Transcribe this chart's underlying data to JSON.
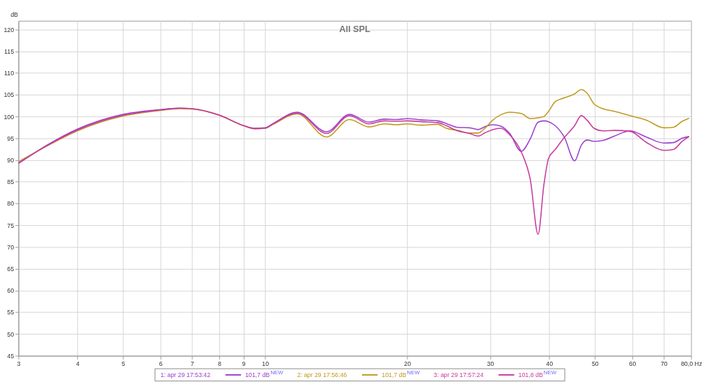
{
  "chart_data": {
    "type": "line",
    "title": "All SPL",
    "ylabel": "dB",
    "x": [
      3.0,
      3.46,
      4.0,
      5.0,
      6.0,
      6.6,
      7.0,
      8.0,
      9.0,
      9.5,
      10.0,
      10.4,
      11.7,
      13.5,
      15.1,
      16.6,
      17.9,
      19.0,
      20.0,
      21.5,
      23.2,
      24.2,
      25.6,
      27.1,
      28.3,
      29.3,
      30.4,
      31.6,
      33.0,
      34.9,
      36.5,
      37.9,
      39.0,
      39.9,
      41.2,
      43.1,
      45.3,
      46.8,
      48.1,
      49.8,
      52.0,
      55.0,
      59.4,
      64.2,
      70.1,
      73.3,
      76.6,
      79.2
    ],
    "series": [
      {
        "name": "1: apr 29 17:53:42",
        "color": "#9b40d0",
        "values": [
          89.2,
          93.5,
          97.1,
          100.5,
          101.6,
          101.9,
          101.8,
          100.3,
          97.9,
          97.3,
          97.4,
          98.4,
          101.0,
          96.5,
          100.5,
          98.7,
          99.4,
          99.3,
          99.5,
          99.2,
          99.0,
          98.4,
          97.5,
          97.4,
          97.0,
          97.7,
          98.1,
          97.8,
          96.1,
          92.0,
          94.9,
          98.7,
          99.0,
          98.8,
          97.9,
          95.2,
          89.8,
          93.4,
          94.6,
          94.3,
          94.5,
          95.5,
          96.7,
          95.3,
          93.9,
          94.0,
          95.0,
          95.4
        ]
      },
      {
        "name": "2: apr 29 17:56:46",
        "color": "#c09a20",
        "values": [
          89.6,
          93.3,
          96.7,
          100.1,
          101.4,
          101.8,
          101.7,
          100.3,
          97.9,
          97.2,
          97.3,
          98.2,
          100.6,
          95.3,
          99.3,
          97.6,
          98.3,
          98.1,
          98.3,
          98.0,
          98.2,
          97.3,
          96.8,
          96.2,
          96.2,
          97.4,
          99.2,
          100.4,
          101.0,
          100.7,
          99.5,
          99.7,
          100.0,
          101.2,
          103.4,
          104.3,
          105.2,
          106.2,
          105.4,
          102.9,
          101.8,
          101.2,
          100.2,
          99.2,
          97.4,
          97.5,
          98.9,
          99.6
        ]
      },
      {
        "name": "3: apr 29 17:57:24",
        "color": "#c83c9c",
        "values": [
          89.3,
          93.4,
          96.9,
          100.3,
          101.5,
          101.9,
          101.8,
          100.3,
          97.9,
          97.2,
          97.3,
          98.3,
          100.8,
          96.1,
          100.2,
          98.3,
          99.0,
          98.9,
          99.0,
          98.8,
          98.6,
          97.9,
          96.7,
          96.1,
          95.5,
          96.3,
          97.0,
          97.3,
          95.8,
          91.9,
          85.4,
          72.9,
          84.4,
          90.4,
          92.4,
          95.2,
          97.9,
          100.2,
          99.2,
          97.3,
          96.7,
          96.8,
          96.6,
          94.1,
          92.2,
          92.4,
          94.3,
          95.4
        ]
      }
    ],
    "annotations": [
      "101,7 dB$^{NEW}$",
      "101,7 dB$^{NEW}$",
      "101,8 dB$^{NEW}$"
    ],
    "log": "x",
    "xlim": [
      3,
      80
    ],
    "ylim": [
      45,
      122
    ],
    "xticks": [
      3,
      4,
      5,
      6,
      7,
      8,
      9,
      10,
      20,
      30,
      40,
      50,
      60,
      70,
      {
        "value": 80,
        "label": "80,0 Hz"
      }
    ],
    "yticks": [
      45,
      50,
      55,
      60,
      65,
      70,
      75,
      80,
      85,
      90,
      95,
      100,
      105,
      110,
      115,
      120
    ],
    "grid": true,
    "legend": "bottom",
    "line_style": "solid",
    "marker": "none"
  }
}
